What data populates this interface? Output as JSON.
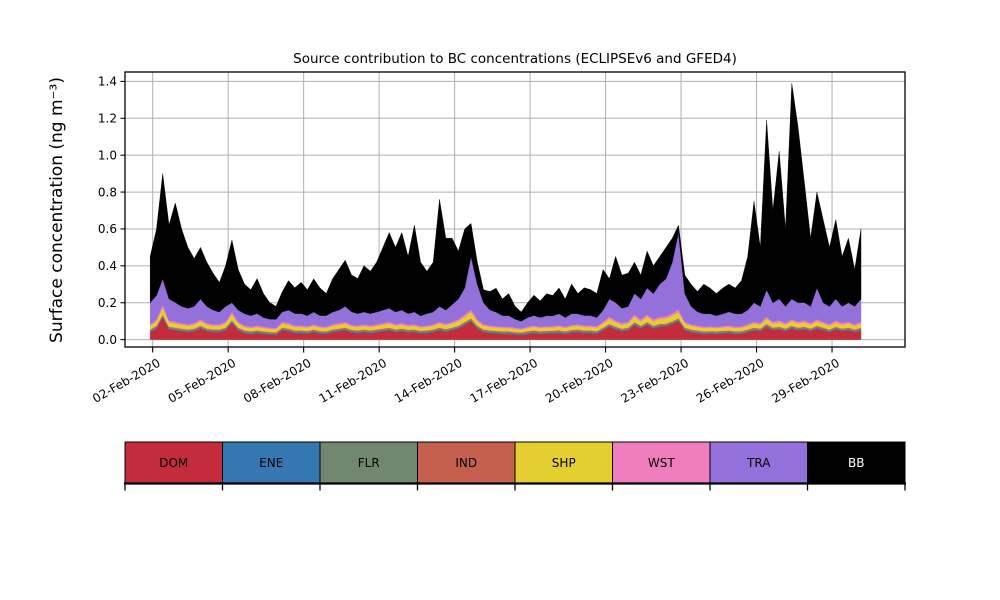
{
  "chart_data": {
    "type": "area",
    "stacked": true,
    "title": "Source contribution to BC concentrations (ECLIPSEv6 and GFED4)",
    "xlabel": "",
    "grid": true,
    "legend_position": "bottom",
    "x_axis": {
      "xlim": [
        -1,
        30
      ],
      "tick_positions": [
        0.1,
        3.1,
        6.1,
        9.1,
        12.1,
        15.1,
        18.1,
        21.1,
        24.1,
        27.1
      ],
      "tick_labels": [
        "02-Feb-2020",
        "05-Feb-2020",
        "08-Feb-2020",
        "11-Feb-2020",
        "14-Feb-2020",
        "17-Feb-2020",
        "20-Feb-2020",
        "23-Feb-2020",
        "26-Feb-2020",
        "29-Feb-2020"
      ]
    },
    "y_axis": {
      "label": "Surface concentration (ng m⁻³)",
      "ylim": [
        -0.04,
        1.451
      ],
      "ticks": [
        0.0,
        0.2,
        0.4,
        0.6,
        0.8,
        1.0,
        1.2,
        1.4
      ],
      "tick_labels": [
        "0.0",
        "0.2",
        "0.4",
        "0.6",
        "0.8",
        "1.0",
        "1.2",
        "1.4"
      ]
    },
    "x": {
      "start": 0,
      "step": 0.25,
      "count": 114
    },
    "series": [
      {
        "name": "DOM",
        "color": "#c42b3c",
        "values": [
          0.04,
          0.06,
          0.12,
          0.055,
          0.05,
          0.045,
          0.04,
          0.045,
          0.06,
          0.045,
          0.04,
          0.04,
          0.05,
          0.09,
          0.05,
          0.035,
          0.03,
          0.035,
          0.03,
          0.027,
          0.025,
          0.05,
          0.045,
          0.035,
          0.035,
          0.032,
          0.04,
          0.032,
          0.03,
          0.04,
          0.045,
          0.05,
          0.038,
          0.035,
          0.04,
          0.035,
          0.04,
          0.045,
          0.05,
          0.04,
          0.045,
          0.038,
          0.04,
          0.033,
          0.035,
          0.04,
          0.05,
          0.042,
          0.05,
          0.06,
          0.08,
          0.1,
          0.06,
          0.04,
          0.035,
          0.033,
          0.03,
          0.03,
          0.026,
          0.024,
          0.03,
          0.035,
          0.03,
          0.033,
          0.033,
          0.036,
          0.03,
          0.038,
          0.04,
          0.035,
          0.035,
          0.032,
          0.05,
          0.07,
          0.055,
          0.045,
          0.05,
          0.08,
          0.06,
          0.08,
          0.06,
          0.07,
          0.072,
          0.085,
          0.1,
          0.05,
          0.04,
          0.035,
          0.03,
          0.032,
          0.03,
          0.033,
          0.035,
          0.03,
          0.032,
          0.04,
          0.05,
          0.045,
          0.07,
          0.05,
          0.055,
          0.045,
          0.06,
          0.05,
          0.055,
          0.045,
          0.06,
          0.05,
          0.04,
          0.055,
          0.045,
          0.05,
          0.04,
          0.05
        ]
      },
      {
        "name": "ENE",
        "color": "#3477b2",
        "constant": 0.005
      },
      {
        "name": "FLR",
        "color": "#72876f",
        "constant": 0.004
      },
      {
        "name": "IND",
        "color": "#c5604f",
        "constant": 0.006
      },
      {
        "name": "SHP",
        "color": "#e5ce2f",
        "values": [
          0.02,
          0.025,
          0.04,
          0.024,
          0.023,
          0.021,
          0.02,
          0.021,
          0.025,
          0.021,
          0.02,
          0.02,
          0.023,
          0.033,
          0.023,
          0.019,
          0.018,
          0.019,
          0.018,
          0.017,
          0.016,
          0.023,
          0.021,
          0.019,
          0.019,
          0.018,
          0.02,
          0.018,
          0.018,
          0.02,
          0.021,
          0.023,
          0.02,
          0.019,
          0.02,
          0.019,
          0.02,
          0.021,
          0.023,
          0.02,
          0.021,
          0.02,
          0.02,
          0.018,
          0.019,
          0.02,
          0.023,
          0.021,
          0.023,
          0.025,
          0.03,
          0.035,
          0.025,
          0.02,
          0.019,
          0.018,
          0.018,
          0.018,
          0.017,
          0.016,
          0.018,
          0.019,
          0.018,
          0.018,
          0.018,
          0.019,
          0.018,
          0.02,
          0.02,
          0.019,
          0.019,
          0.018,
          0.023,
          0.028,
          0.024,
          0.021,
          0.023,
          0.03,
          0.025,
          0.03,
          0.025,
          0.028,
          0.028,
          0.031,
          0.035,
          0.023,
          0.02,
          0.019,
          0.018,
          0.018,
          0.018,
          0.018,
          0.019,
          0.018,
          0.018,
          0.02,
          0.023,
          0.021,
          0.028,
          0.023,
          0.024,
          0.021,
          0.025,
          0.023,
          0.024,
          0.021,
          0.025,
          0.023,
          0.02,
          0.024,
          0.021,
          0.023,
          0.02,
          0.023
        ]
      },
      {
        "name": "WST",
        "color": "#f07ebe",
        "values": [
          0.008,
          0.01,
          0.016,
          0.01,
          0.009,
          0.009,
          0.008,
          0.009,
          0.01,
          0.009,
          0.008,
          0.008,
          0.009,
          0.013,
          0.009,
          0.008,
          0.007,
          0.008,
          0.007,
          0.007,
          0.007,
          0.009,
          0.009,
          0.008,
          0.008,
          0.007,
          0.008,
          0.007,
          0.007,
          0.008,
          0.009,
          0.009,
          0.008,
          0.008,
          0.008,
          0.008,
          0.008,
          0.009,
          0.009,
          0.008,
          0.009,
          0.008,
          0.008,
          0.007,
          0.008,
          0.008,
          0.009,
          0.008,
          0.009,
          0.01,
          0.012,
          0.014,
          0.01,
          0.008,
          0.008,
          0.007,
          0.007,
          0.007,
          0.007,
          0.006,
          0.007,
          0.008,
          0.007,
          0.007,
          0.007,
          0.008,
          0.007,
          0.008,
          0.008,
          0.008,
          0.008,
          0.007,
          0.009,
          0.011,
          0.01,
          0.009,
          0.009,
          0.012,
          0.01,
          0.012,
          0.01,
          0.011,
          0.011,
          0.013,
          0.014,
          0.009,
          0.008,
          0.008,
          0.007,
          0.007,
          0.007,
          0.007,
          0.008,
          0.007,
          0.007,
          0.008,
          0.009,
          0.009,
          0.011,
          0.009,
          0.01,
          0.009,
          0.01,
          0.009,
          0.01,
          0.009,
          0.01,
          0.009,
          0.008,
          0.01,
          0.009,
          0.009,
          0.008,
          0.009
        ]
      },
      {
        "name": "TRA",
        "color": "#9470db",
        "values": [
          0.117,
          0.13,
          0.139,
          0.117,
          0.104,
          0.09,
          0.087,
          0.09,
          0.11,
          0.09,
          0.077,
          0.067,
          0.083,
          0.049,
          0.063,
          0.064,
          0.06,
          0.064,
          0.05,
          0.045,
          0.047,
          0.053,
          0.07,
          0.064,
          0.064,
          0.058,
          0.067,
          0.058,
          0.06,
          0.067,
          0.07,
          0.083,
          0.07,
          0.064,
          0.067,
          0.064,
          0.067,
          0.07,
          0.073,
          0.067,
          0.07,
          0.06,
          0.067,
          0.056,
          0.064,
          0.067,
          0.083,
          0.074,
          0.093,
          0.11,
          0.143,
          0.286,
          0.19,
          0.117,
          0.084,
          0.076,
          0.06,
          0.06,
          0.046,
          0.039,
          0.05,
          0.054,
          0.05,
          0.056,
          0.056,
          0.062,
          0.05,
          0.06,
          0.057,
          0.054,
          0.054,
          0.048,
          0.063,
          0.096,
          0.097,
          0.08,
          0.083,
          0.113,
          0.11,
          0.143,
          0.14,
          0.176,
          0.204,
          0.276,
          0.416,
          0.153,
          0.097,
          0.074,
          0.07,
          0.068,
          0.06,
          0.066,
          0.074,
          0.07,
          0.068,
          0.077,
          0.103,
          0.09,
          0.146,
          0.103,
          0.117,
          0.09,
          0.11,
          0.103,
          0.097,
          0.09,
          0.17,
          0.103,
          0.097,
          0.117,
          0.09,
          0.103,
          0.097,
          0.123
        ]
      },
      {
        "name": "BB",
        "color": "#000000",
        "values": [
          0.25,
          0.36,
          0.57,
          0.4,
          0.54,
          0.42,
          0.33,
          0.26,
          0.28,
          0.24,
          0.2,
          0.16,
          0.22,
          0.34,
          0.22,
          0.16,
          0.14,
          0.19,
          0.13,
          0.09,
          0.07,
          0.11,
          0.16,
          0.14,
          0.17,
          0.14,
          0.18,
          0.15,
          0.12,
          0.18,
          0.22,
          0.25,
          0.2,
          0.19,
          0.25,
          0.23,
          0.27,
          0.34,
          0.41,
          0.35,
          0.42,
          0.31,
          0.47,
          0.29,
          0.23,
          0.27,
          0.58,
          0.39,
          0.36,
          0.26,
          0.32,
          0.18,
          0.12,
          0.07,
          0.1,
          0.13,
          0.09,
          0.12,
          0.07,
          0.05,
          0.08,
          0.11,
          0.09,
          0.12,
          0.11,
          0.14,
          0.1,
          0.16,
          0.11,
          0.15,
          0.14,
          0.13,
          0.22,
          0.11,
          0.25,
          0.18,
          0.18,
          0.17,
          0.13,
          0.2,
          0.15,
          0.15,
          0.17,
          0.13,
          0.04,
          0.1,
          0.12,
          0.11,
          0.16,
          0.14,
          0.12,
          0.14,
          0.15,
          0.14,
          0.18,
          0.29,
          0.55,
          0.32,
          0.92,
          0.5,
          0.8,
          0.42,
          1.17,
          0.95,
          0.65,
          0.37,
          0.52,
          0.45,
          0.32,
          0.43,
          0.27,
          0.35,
          0.2,
          0.38
        ]
      }
    ]
  },
  "legend": {
    "items": [
      {
        "label": "DOM",
        "color": "#c42b3c",
        "text_color": "#000000"
      },
      {
        "label": "ENE",
        "color": "#3477b2",
        "text_color": "#000000"
      },
      {
        "label": "FLR",
        "color": "#72876f",
        "text_color": "#000000"
      },
      {
        "label": "IND",
        "color": "#c5604f",
        "text_color": "#000000"
      },
      {
        "label": "SHP",
        "color": "#e5ce2f",
        "text_color": "#000000"
      },
      {
        "label": "WST",
        "color": "#f07ebe",
        "text_color": "#000000"
      },
      {
        "label": "TRA",
        "color": "#9470db",
        "text_color": "#000000"
      },
      {
        "label": "BB",
        "color": "#000000",
        "text_color": "#ffffff"
      }
    ]
  },
  "colors": {
    "grid": "#b0b0b0",
    "spine": "#000000",
    "background": "#ffffff"
  }
}
